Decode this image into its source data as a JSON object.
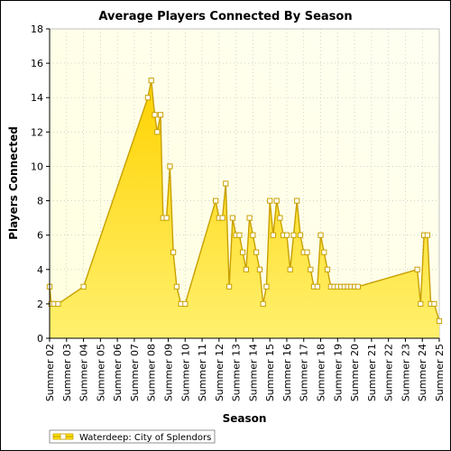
{
  "chart_data": {
    "type": "area",
    "title": "Average Players Connected By Season",
    "xlabel": "Season",
    "ylabel": "Players Connected",
    "ylim": [
      0,
      18
    ],
    "yticks": [
      0,
      2,
      4,
      6,
      8,
      10,
      12,
      14,
      16,
      18
    ],
    "categories": [
      "Summer 02",
      "Summer 03",
      "Summer 04",
      "Summer 05",
      "Summer 06",
      "Summer 07",
      "Summer 08",
      "Summer 09",
      "Summer 10",
      "Summer 11",
      "Summer 12",
      "Summer 13",
      "Summer 14",
      "Summer 15",
      "Summer 16",
      "Summer 17",
      "Summer 18",
      "Summer 19",
      "Summer 20",
      "Summer 21",
      "Summer 22",
      "Summer 23",
      "Summer 24",
      "Summer 25"
    ],
    "grid": true,
    "legend_position": "bottom-left",
    "series": [
      {
        "name": "Waterdeep: City of Splendors",
        "color": "#ffe500",
        "line_color": "#c8a000",
        "x": [
          2.0,
          2.1,
          2.25,
          2.5,
          4.0,
          7.8,
          8.0,
          8.2,
          8.35,
          8.55,
          8.7,
          8.9,
          9.1,
          9.3,
          9.5,
          9.75,
          10.0,
          11.8,
          12.0,
          12.2,
          12.4,
          12.6,
          12.8,
          13.0,
          13.2,
          13.4,
          13.6,
          13.8,
          14.0,
          14.2,
          14.4,
          14.6,
          14.8,
          15.0,
          15.2,
          15.4,
          15.6,
          15.8,
          16.0,
          16.2,
          16.4,
          16.6,
          16.8,
          17.0,
          17.2,
          17.4,
          17.6,
          17.8,
          18.0,
          18.2,
          18.4,
          18.6,
          18.8,
          19.0,
          19.2,
          19.4,
          19.6,
          19.8,
          20.0,
          20.2,
          23.7,
          23.9,
          24.1,
          24.3,
          24.5,
          24.7,
          25.0
        ],
        "y": [
          3,
          2,
          2,
          2,
          3,
          14,
          15,
          13,
          12,
          13,
          7,
          7,
          10,
          5,
          3,
          2,
          2,
          8,
          7,
          7,
          9,
          3,
          7,
          6,
          6,
          5,
          4,
          7,
          6,
          5,
          4,
          2,
          3,
          8,
          6,
          8,
          7,
          6,
          6,
          4,
          6,
          8,
          6,
          5,
          5,
          4,
          3,
          3,
          6,
          5,
          4,
          3,
          3,
          3,
          3,
          3,
          3,
          3,
          3,
          3,
          4,
          2,
          6,
          6,
          2,
          2,
          1
        ]
      }
    ]
  }
}
